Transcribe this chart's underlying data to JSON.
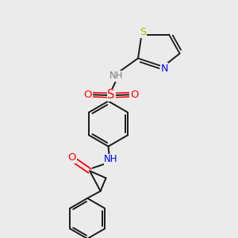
{
  "background_color": "#ebebeb",
  "colors": {
    "bond": "#1a1a1a",
    "nitrogen": "#0000ff",
    "oxygen": "#ff0000",
    "sulfur_so2": "#ff0000",
    "sulfur_thiazole": "#b8b800",
    "hydrogen_label": "#808080"
  },
  "layout": {
    "xlim": [
      0,
      1
    ],
    "ylim": [
      0,
      1
    ]
  }
}
